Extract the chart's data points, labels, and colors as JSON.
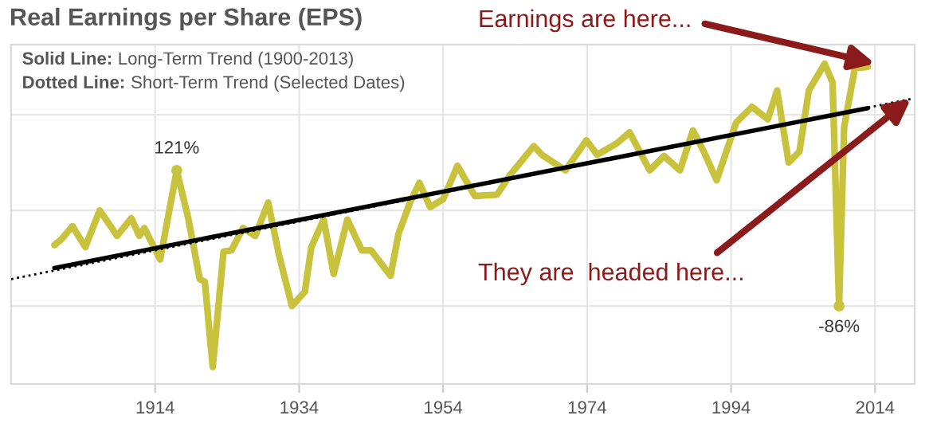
{
  "chart_data": {
    "type": "line",
    "title": "Real Earnings per Share (EPS)",
    "annotations": [
      "Solid Line: Long-Term Trend (1900-2013)",
      "Dotted Line: Short-Term Trend (Selected Dates)",
      {
        "text": "Earnings are here...",
        "x": 2014,
        "y": 284
      },
      {
        "text": "They are  headed here...",
        "x": 2019,
        "y": 231
      }
    ],
    "series": [
      {
        "color": "#c8c23c",
        "x": [
          1900,
          1901,
          1902.5,
          1904.3,
          1906.3,
          1908,
          1908.7,
          1910.7,
          1911.8,
          1912.5,
          1914.7,
          1917,
          1918.6,
          1920.2,
          1920.9,
          1922,
          1923.5,
          1924.6,
          1926.2,
          1927.9,
          1929.7,
          1931.2,
          1933,
          1934.8,
          1935.7,
          1937.4,
          1938.8,
          1940.7,
          1942.7,
          1944,
          1946.7,
          1947.8,
          1949.4,
          1950.7,
          1952.2,
          1954,
          1956,
          1958.4,
          1961.5,
          1963.3,
          1966.6,
          1967.7,
          1971,
          1973.9,
          1975.4,
          1978.1,
          1979.9,
          1982.7,
          1984.7,
          1986.9,
          1988.7,
          1990.2,
          1992,
          1994.7,
          1996.9,
          1999.1,
          2000.4,
          2002,
          2003.5,
          2004.8,
          2007,
          2008.1,
          2009,
          2009.7,
          2011.2,
          2013
        ],
        "values": [
          7,
          16,
          36,
          4,
          60,
          33,
          21,
          48,
          21,
          33,
          -15,
          121,
          48,
          -45,
          -49,
          -179,
          -3,
          -1,
          33,
          21,
          72,
          -8,
          -86,
          -64,
          4,
          46,
          -37,
          46,
          -1,
          -1,
          -40,
          24,
          72,
          102,
          65,
          77,
          128,
          82,
          84,
          114,
          158,
          145,
          121,
          167,
          145,
          162,
          179,
          121,
          143,
          121,
          182,
          150,
          106,
          194,
          218,
          199,
          243,
          133,
          150,
          243,
          284,
          255,
          -86,
          187,
          277,
          279
        ],
        "value_labels": [
          null,
          null,
          null,
          null,
          null,
          null,
          null,
          null,
          null,
          null,
          null,
          "121%",
          null,
          null,
          null,
          null,
          null,
          null,
          null,
          null,
          null,
          null,
          null,
          null,
          null,
          null,
          null,
          null,
          null,
          null,
          null,
          null,
          null,
          null,
          null,
          null,
          null,
          null,
          null,
          null,
          null,
          null,
          null,
          null,
          null,
          null,
          null,
          null,
          null,
          null,
          null,
          null,
          null,
          null,
          null,
          null,
          null,
          null,
          null,
          null,
          null,
          null,
          "-86%",
          null,
          null,
          null
        ]
      },
      {
        "color": "#000000",
        "x": [
          1894,
          2019.4
        ],
        "values": [
          -45,
          231
        ],
        "line_style": "dotted"
      },
      {
        "color": "#000000",
        "x": [
          1900,
          2013
        ],
        "values": [
          -28,
          216
        ],
        "line_style": "solid"
      }
    ],
    "xlim": [
      1894,
      2019.5
    ],
    "xticks": [
      1914,
      1934,
      1954,
      1974,
      1994,
      2014
    ],
    "ylim": [
      -205,
      313
    ],
    "yticks": [
      {
        "value": -86,
        "label": null
      },
      {
        "value": 60,
        "label": null
      },
      {
        "value": 206,
        "label": null
      }
    ],
    "tick_labels": "x",
    "grid": true,
    "marker": "none"
  }
}
